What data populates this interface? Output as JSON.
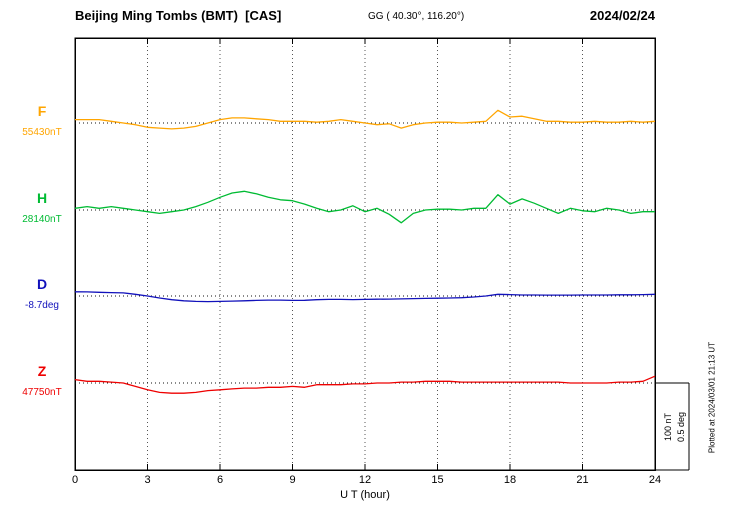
{
  "header": {
    "title": "Beijing Ming Tombs (BMT)  [CAS]",
    "coords": "GG ( 40.30°, 116.20°)",
    "date": "2024/02/24"
  },
  "chart_data": {
    "type": "line",
    "title": "Beijing Ming Tombs (BMT) [CAS] magnetogram",
    "xlabel": "U T (hour)",
    "x_range": [
      0,
      24
    ],
    "x_ticks": [
      "0",
      "3",
      "6",
      "9",
      "12",
      "15",
      "18",
      "21",
      "24"
    ],
    "x_step_hours": 0.5,
    "grid": "dotted vertical lines every 3 hours; dotted horizontal baseline per trace",
    "legend_position": "left labels per trace",
    "scale_bar": {
      "nT_label": "100 nT",
      "deg_label": "0.5 deg",
      "span_nT": 100,
      "span_deg": 0.5
    },
    "plotted_at": "Plotted at 2024/03/01 21:13 UT",
    "series": [
      {
        "key": "F",
        "label": "F",
        "value_label": "55430nT",
        "baseline_value": 55430,
        "unit": "nT",
        "color": "#FFA500",
        "offsets": [
          4,
          4,
          4,
          2,
          0,
          -2,
          -5,
          -6,
          -7,
          -6,
          -4,
          0,
          4,
          6,
          6,
          5,
          4,
          2,
          2,
          2,
          1,
          2,
          4,
          2,
          0,
          -2,
          -1,
          -6,
          -2,
          0,
          1,
          1,
          0,
          1,
          2,
          15,
          7,
          8,
          5,
          2,
          2,
          1,
          1,
          2,
          1,
          1,
          2,
          1,
          2
        ]
      },
      {
        "key": "H",
        "label": "H",
        "value_label": "28140nT",
        "baseline_value": 28140,
        "unit": "nT",
        "color": "#00BB33",
        "offsets": [
          2,
          4,
          2,
          4,
          2,
          0,
          -2,
          -4,
          -2,
          0,
          4,
          9,
          15,
          20,
          22,
          19,
          15,
          12,
          11,
          7,
          2,
          -2,
          0,
          5,
          -2,
          2,
          -5,
          -15,
          -4,
          0,
          1,
          1,
          0,
          2,
          2,
          18,
          7,
          13,
          8,
          2,
          -4,
          2,
          -1,
          -2,
          2,
          0,
          -4,
          -2,
          -2
        ]
      },
      {
        "key": "D",
        "label": "D",
        "value_label": "-8.7deg",
        "baseline_value": -8.7,
        "unit": "deg",
        "color": "#1111BB",
        "offsets": [
          0.025,
          0.024,
          0.022,
          0.02,
          0.018,
          0.01,
          0.0,
          -0.012,
          -0.022,
          -0.028,
          -0.032,
          -0.033,
          -0.032,
          -0.03,
          -0.028,
          -0.026,
          -0.024,
          -0.024,
          -0.026,
          -0.025,
          -0.022,
          -0.02,
          -0.02,
          -0.021,
          -0.02,
          -0.019,
          -0.018,
          -0.017,
          -0.015,
          -0.014,
          -0.013,
          -0.012,
          -0.01,
          -0.006,
          0.0,
          0.01,
          0.008,
          0.006,
          0.006,
          0.005,
          0.005,
          0.005,
          0.006,
          0.006,
          0.006,
          0.007,
          0.007,
          0.008,
          0.01
        ]
      },
      {
        "key": "Z",
        "label": "Z",
        "value_label": "47750nT",
        "baseline_value": 47750,
        "unit": "nT",
        "color": "#EE0000",
        "offsets": [
          4,
          2,
          2,
          1,
          0,
          -4,
          -8,
          -11,
          -12,
          -12,
          -11,
          -9,
          -8,
          -7,
          -6,
          -6,
          -5,
          -5,
          -4,
          -5,
          -2,
          -2,
          -2,
          -1,
          -1,
          0,
          0,
          1,
          1,
          2,
          2,
          2,
          1,
          1,
          1,
          1,
          1,
          1,
          1,
          1,
          1,
          0,
          0,
          0,
          0,
          1,
          1,
          2,
          8
        ]
      }
    ]
  }
}
